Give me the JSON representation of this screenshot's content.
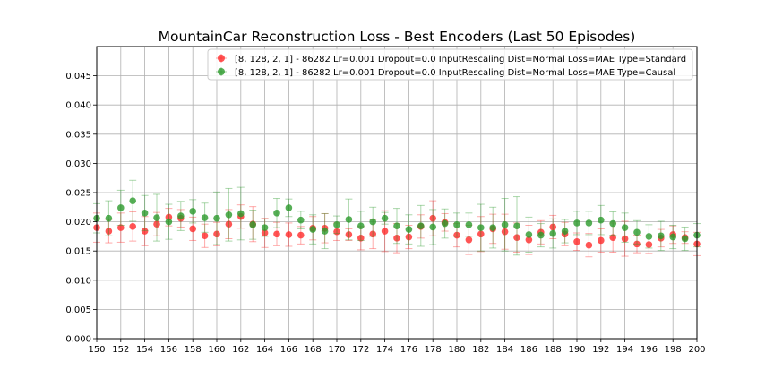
{
  "chart_data": {
    "type": "scatter",
    "title": "MountainCar Reconstruction Loss - Best Encoders (Last 50 Episodes)",
    "xlabel": "",
    "ylabel": "",
    "xlim": [
      150,
      200
    ],
    "ylim": [
      0.0,
      0.05
    ],
    "grid": true,
    "legend_position": "top-right",
    "x_ticks": [
      "150",
      "152",
      "154",
      "156",
      "158",
      "160",
      "162",
      "164",
      "166",
      "168",
      "170",
      "172",
      "174",
      "176",
      "178",
      "180",
      "182",
      "184",
      "186",
      "188",
      "190",
      "192",
      "194",
      "196",
      "198",
      "200"
    ],
    "y_ticks": [
      "0.000",
      "0.005",
      "0.010",
      "0.015",
      "0.020",
      "0.025",
      "0.030",
      "0.035",
      "0.040",
      "0.045"
    ],
    "x": [
      150,
      151,
      152,
      153,
      154,
      155,
      156,
      157,
      158,
      159,
      160,
      161,
      162,
      163,
      164,
      165,
      166,
      167,
      168,
      169,
      170,
      171,
      172,
      173,
      174,
      175,
      176,
      177,
      178,
      179,
      180,
      181,
      182,
      183,
      184,
      185,
      186,
      187,
      188,
      189,
      190,
      191,
      192,
      193,
      194,
      195,
      196,
      197,
      198,
      199,
      200
    ],
    "series": [
      {
        "name": "[8, 128, 2, 1] - 86282 Lr=0.001 Dropout=0.0 InputRescaling Dist=Normal Loss=MAE Type=Standard",
        "color": "#ff2a2a",
        "values": [
          0.019,
          0.0184,
          0.019,
          0.0192,
          0.0184,
          0.0196,
          0.0208,
          0.0206,
          0.0188,
          0.0176,
          0.0179,
          0.0196,
          0.0209,
          0.0196,
          0.0181,
          0.0179,
          0.0178,
          0.0177,
          0.0189,
          0.0189,
          0.0183,
          0.0178,
          0.0172,
          0.0179,
          0.0184,
          0.0172,
          0.0174,
          0.0192,
          0.0206,
          0.0199,
          0.0177,
          0.0169,
          0.0179,
          0.0188,
          0.0183,
          0.0173,
          0.0169,
          0.0182,
          0.0191,
          0.0179,
          0.0166,
          0.016,
          0.0168,
          0.0173,
          0.0171,
          0.0162,
          0.0161,
          0.0172,
          0.0178,
          0.0173,
          0.0162
        ],
        "errors": [
          0.0025,
          0.002,
          0.0025,
          0.0025,
          0.0025,
          0.002,
          0.0015,
          0.0015,
          0.002,
          0.002,
          0.002,
          0.0025,
          0.002,
          0.003,
          0.0025,
          0.002,
          0.002,
          0.0015,
          0.002,
          0.0025,
          0.0015,
          0.001,
          0.002,
          0.0025,
          0.0035,
          0.0025,
          0.002,
          0.002,
          0.003,
          0.0015,
          0.002,
          0.0025,
          0.003,
          0.0025,
          0.003,
          0.0025,
          0.0025,
          0.002,
          0.002,
          0.002,
          0.0015,
          0.002,
          0.002,
          0.0025,
          0.003,
          0.0015,
          0.0015,
          0.0015,
          0.0015,
          0.001,
          0.002
        ]
      },
      {
        "name": "[8, 128, 2, 1] - 86282 Lr=0.001 Dropout=0.0 InputRescaling Dist=Normal Loss=MAE Type=Causal",
        "color": "#2c9a2c",
        "values": [
          0.0206,
          0.0206,
          0.0224,
          0.0236,
          0.0215,
          0.0207,
          0.02,
          0.021,
          0.0218,
          0.0207,
          0.0206,
          0.0212,
          0.0214,
          0.0195,
          0.019,
          0.0215,
          0.0224,
          0.0203,
          0.0187,
          0.0184,
          0.0195,
          0.0204,
          0.0193,
          0.02,
          0.0206,
          0.0193,
          0.0187,
          0.0193,
          0.0191,
          0.0197,
          0.0195,
          0.0195,
          0.019,
          0.019,
          0.0195,
          0.0193,
          0.0178,
          0.0177,
          0.018,
          0.0184,
          0.0198,
          0.0198,
          0.0203,
          0.0197,
          0.019,
          0.0182,
          0.0175,
          0.0176,
          0.0174,
          0.0171,
          0.0177
        ],
        "errors": [
          0.0025,
          0.003,
          0.003,
          0.0035,
          0.003,
          0.004,
          0.003,
          0.0025,
          0.002,
          0.0025,
          0.0045,
          0.0045,
          0.0045,
          0.0025,
          0.0015,
          0.0025,
          0.0015,
          0.0015,
          0.0025,
          0.003,
          0.0015,
          0.0035,
          0.0025,
          0.0025,
          0.001,
          0.003,
          0.0025,
          0.0035,
          0.003,
          0.0025,
          0.002,
          0.002,
          0.004,
          0.0035,
          0.0045,
          0.005,
          0.003,
          0.002,
          0.0025,
          0.002,
          0.002,
          0.002,
          0.0025,
          0.002,
          0.0025,
          0.002,
          0.002,
          0.0025,
          0.002,
          0.002,
          0.002
        ]
      }
    ]
  }
}
